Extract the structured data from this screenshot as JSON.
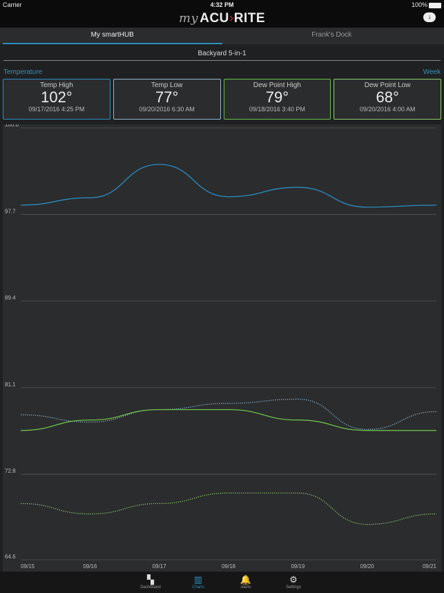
{
  "status": {
    "carrier": "Carrier",
    "time": "4:32 PM",
    "battery": "100%"
  },
  "header": {
    "logo_my": "my",
    "logo_brand_a": "ACU",
    "logo_brand_b": "RITE"
  },
  "tabs": [
    {
      "label": "My smartHUB",
      "active": true
    },
    {
      "label": "Frank's Dock",
      "active": false
    }
  ],
  "sensor": "Backyard 5-in-1",
  "measure": "Temperature",
  "range": "Week",
  "cards": [
    {
      "title": "Temp High",
      "value": "102°",
      "date": "09/17/2016 4:25 PM",
      "color": "#2a8fc0"
    },
    {
      "title": "Temp Low",
      "value": "77°",
      "date": "09/20/2016 6:30 AM",
      "color": "#8fb8d0"
    },
    {
      "title": "Dew Point High",
      "value": "79°",
      "date": "09/18/2016 3:40 PM",
      "color": "#6cc04a"
    },
    {
      "title": "Dew Point Low",
      "value": "68°",
      "date": "09/20/2016 4:00 AM",
      "color": "#8ed06a"
    }
  ],
  "chart_data": {
    "type": "line",
    "x": [
      "09/15",
      "09/16",
      "09/17",
      "09/18",
      "09/19",
      "09/20",
      "09/21"
    ],
    "yticks": [
      106.0,
      97.7,
      89.4,
      81.1,
      72.8,
      64.6
    ],
    "ylim": [
      64.6,
      106.0
    ],
    "grid": true,
    "series": [
      {
        "name": "Temp High",
        "color": "#2a8fc0",
        "dashed": false,
        "values": [
          98.6,
          99.3,
          102.5,
          99.4,
          100.3,
          98.4,
          98.6
        ]
      },
      {
        "name": "Temp Low",
        "color": "#8fb8d0",
        "dashed": true,
        "values": [
          78.5,
          77.8,
          79.0,
          79.6,
          80.0,
          77.1,
          78.8
        ]
      },
      {
        "name": "Dew Point High",
        "color": "#6cc04a",
        "dashed": false,
        "values": [
          77.0,
          78.0,
          79.0,
          79.0,
          78.0,
          77.0,
          77.0
        ]
      },
      {
        "name": "Dew Point Low",
        "color": "#8ed06a",
        "dashed": true,
        "values": [
          70.0,
          69.0,
          70.0,
          71.0,
          71.0,
          68.0,
          69.0
        ]
      }
    ]
  },
  "nav": [
    {
      "label": "Dashboard",
      "icon": "▚"
    },
    {
      "label": "Charts",
      "icon": "▥",
      "active": true
    },
    {
      "label": "Alerts",
      "icon": "🔔"
    },
    {
      "label": "Settings",
      "icon": "⚙"
    }
  ]
}
